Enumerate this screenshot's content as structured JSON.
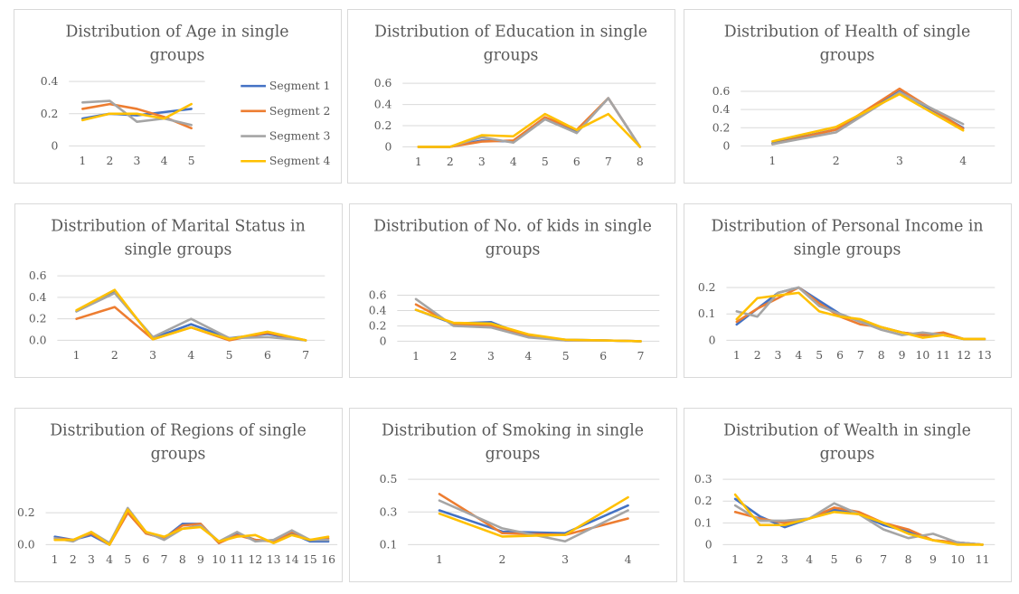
{
  "colors": {
    "Segment 1": "#4472c4",
    "Segment 2": "#ed7d31",
    "Segment 3": "#a5a5a5",
    "Segment 4": "#ffc000"
  },
  "legend": [
    "Segment 1",
    "Segment 2",
    "Segment 3",
    "Segment 4"
  ],
  "chart_data": [
    {
      "type": "line",
      "title": [
        "Distribution of Age in single",
        "groups"
      ],
      "xlabel": "",
      "ylabel": "",
      "x": [
        "1",
        "2",
        "3",
        "4",
        "5"
      ],
      "yticks": [
        "0.4",
        "0.2",
        "0"
      ],
      "ylim": [
        0,
        0.4
      ],
      "legend": "right",
      "series": [
        {
          "name": "Segment 1",
          "values": [
            0.17,
            0.2,
            0.19,
            0.21,
            0.23
          ]
        },
        {
          "name": "Segment 2",
          "values": [
            0.23,
            0.26,
            0.23,
            0.18,
            0.11
          ]
        },
        {
          "name": "Segment 3",
          "values": [
            0.27,
            0.28,
            0.15,
            0.17,
            0.13
          ]
        },
        {
          "name": "Segment 4",
          "values": [
            0.16,
            0.2,
            0.2,
            0.17,
            0.26
          ]
        }
      ]
    },
    {
      "type": "line",
      "title": [
        "Distribution of Education in single",
        "groups"
      ],
      "xlabel": "",
      "ylabel": "",
      "x": [
        "1",
        "2",
        "3",
        "4",
        "5",
        "6",
        "7",
        "8"
      ],
      "yticks": [
        "0.6",
        "0.4",
        "0.2",
        "0"
      ],
      "ylim": [
        0,
        0.6
      ],
      "series": [
        {
          "name": "Segment 1",
          "values": [
            0,
            0,
            0.06,
            0.05,
            0.27,
            0.14,
            0.46,
            0
          ]
        },
        {
          "name": "Segment 2",
          "values": [
            0,
            0,
            0.05,
            0.06,
            0.28,
            0.16,
            0.46,
            0
          ]
        },
        {
          "name": "Segment 3",
          "values": [
            0,
            0,
            0.09,
            0.04,
            0.26,
            0.13,
            0.46,
            0
          ]
        },
        {
          "name": "Segment 4",
          "values": [
            0,
            0,
            0.11,
            0.1,
            0.31,
            0.16,
            0.31,
            0
          ]
        }
      ]
    },
    {
      "type": "line",
      "title": [
        "Distribution of Health of single",
        "groups"
      ],
      "xlabel": "",
      "ylabel": "",
      "x": [
        "1",
        "2",
        "3",
        "4"
      ],
      "yticks": [
        "0.6",
        "0.4",
        "0.2",
        "0"
      ],
      "ylim": [
        0,
        0.6
      ],
      "series": [
        {
          "name": "Segment 1",
          "values": [
            0.03,
            0.18,
            0.6,
            0.2
          ]
        },
        {
          "name": "Segment 2",
          "values": [
            0.02,
            0.18,
            0.63,
            0.19
          ]
        },
        {
          "name": "Segment 3",
          "values": [
            0.02,
            0.15,
            0.59,
            0.24
          ]
        },
        {
          "name": "Segment 4",
          "values": [
            0.05,
            0.21,
            0.57,
            0.17
          ]
        }
      ]
    },
    {
      "type": "line",
      "title": [
        "Distribution of Marital Status in",
        "single groups"
      ],
      "xlabel": "",
      "ylabel": "",
      "x": [
        "1",
        "2",
        "3",
        "4",
        "5",
        "6",
        "7"
      ],
      "yticks": [
        "0.6",
        "0.4",
        "0.2",
        "0.0"
      ],
      "ylim": [
        0,
        0.6
      ],
      "series": [
        {
          "name": "Segment 1",
          "values": [
            0.27,
            0.45,
            0.02,
            0.15,
            0.02,
            0.06,
            0
          ]
        },
        {
          "name": "Segment 2",
          "values": [
            0.2,
            0.31,
            0.01,
            0.12,
            0,
            0.07,
            0
          ]
        },
        {
          "name": "Segment 3",
          "values": [
            0.27,
            0.44,
            0.03,
            0.2,
            0.02,
            0.03,
            0
          ]
        },
        {
          "name": "Segment 4",
          "values": [
            0.28,
            0.47,
            0.01,
            0.12,
            0.01,
            0.08,
            0
          ]
        }
      ]
    },
    {
      "type": "line",
      "title": [
        "Distribution of No. of kids in single",
        "groups"
      ],
      "xlabel": "",
      "ylabel": "",
      "x": [
        "1",
        "2",
        "3",
        "4",
        "5",
        "6",
        "7"
      ],
      "yticks": [
        "0.6",
        "0.4",
        "0.2",
        "0"
      ],
      "ylim": [
        0,
        0.7
      ],
      "series": [
        {
          "name": "Segment 1",
          "values": [
            0.41,
            0.23,
            0.25,
            0.06,
            0.02,
            0.01,
            0
          ]
        },
        {
          "name": "Segment 2",
          "values": [
            0.48,
            0.22,
            0.21,
            0.07,
            0.01,
            0.01,
            0
          ]
        },
        {
          "name": "Segment 3",
          "values": [
            0.55,
            0.2,
            0.18,
            0.05,
            0.01,
            0.01,
            0
          ]
        },
        {
          "name": "Segment 4",
          "values": [
            0.41,
            0.24,
            0.23,
            0.09,
            0.02,
            0.01,
            0
          ]
        }
      ]
    },
    {
      "type": "line",
      "title": [
        "Distribution of Personal Income in",
        "single groups"
      ],
      "xlabel": "",
      "ylabel": "",
      "x": [
        "1",
        "2",
        "3",
        "4",
        "5",
        "6",
        "7",
        "8",
        "9",
        "10",
        "11",
        "12",
        "13"
      ],
      "yticks": [
        "0.2",
        "0.1",
        "0"
      ],
      "ylim": [
        0,
        0.2
      ],
      "series": [
        {
          "name": "Segment 1",
          "values": [
            0.06,
            0.12,
            0.18,
            0.2,
            0.15,
            0.1,
            0.07,
            0.05,
            0.03,
            0.02,
            0.02,
            0.005,
            0.005
          ]
        },
        {
          "name": "Segment 2",
          "values": [
            0.07,
            0.12,
            0.16,
            0.2,
            0.14,
            0.09,
            0.06,
            0.05,
            0.03,
            0.02,
            0.03,
            0.005,
            0.005
          ]
        },
        {
          "name": "Segment 3",
          "values": [
            0.11,
            0.09,
            0.18,
            0.2,
            0.13,
            0.1,
            0.07,
            0.04,
            0.02,
            0.03,
            0.02,
            0.005,
            0.005
          ]
        },
        {
          "name": "Segment 4",
          "values": [
            0.08,
            0.16,
            0.17,
            0.18,
            0.11,
            0.09,
            0.08,
            0.05,
            0.03,
            0.01,
            0.02,
            0.005,
            0.005
          ]
        }
      ]
    },
    {
      "type": "line",
      "title": [
        "Distribution of Regions of single",
        "groups"
      ],
      "xlabel": "",
      "ylabel": "",
      "x": [
        "1",
        "2",
        "3",
        "4",
        "5",
        "6",
        "7",
        "8",
        "9",
        "10",
        "11",
        "12",
        "13",
        "14",
        "15",
        "16"
      ],
      "yticks": [
        "0.2",
        "0.0"
      ],
      "ylim": [
        0,
        0.32
      ],
      "series": [
        {
          "name": "Segment 1",
          "values": [
            0.05,
            0.03,
            0.06,
            0,
            0.21,
            0.07,
            0.04,
            0.13,
            0.13,
            0.01,
            0.07,
            0.03,
            0.02,
            0.07,
            0.02,
            0.02
          ]
        },
        {
          "name": "Segment 2",
          "values": [
            0.04,
            0.03,
            0.07,
            0,
            0.2,
            0.07,
            0.04,
            0.12,
            0.13,
            0.01,
            0.06,
            0.03,
            0.02,
            0.08,
            0.03,
            0.04
          ]
        },
        {
          "name": "Segment 3",
          "values": [
            0.04,
            0.02,
            0.08,
            0.01,
            0.23,
            0.08,
            0.03,
            0.1,
            0.12,
            0.02,
            0.08,
            0.02,
            0.03,
            0.09,
            0.03,
            0.03
          ]
        },
        {
          "name": "Segment 4",
          "values": [
            0.03,
            0.03,
            0.08,
            0,
            0.22,
            0.08,
            0.05,
            0.1,
            0.11,
            0.02,
            0.05,
            0.06,
            0.01,
            0.06,
            0.03,
            0.05
          ]
        }
      ]
    },
    {
      "type": "line",
      "title": [
        "Distribution of Smoking in single",
        "groups"
      ],
      "xlabel": "",
      "ylabel": "",
      "x": [
        "1",
        "2",
        "3",
        "4"
      ],
      "yticks": [
        "0.5",
        "0.3",
        "0.1"
      ],
      "ylim": [
        0.1,
        0.5
      ],
      "series": [
        {
          "name": "Segment 1",
          "values": [
            0.31,
            0.18,
            0.17,
            0.34
          ]
        },
        {
          "name": "Segment 2",
          "values": [
            0.41,
            0.17,
            0.16,
            0.26
          ]
        },
        {
          "name": "Segment 3",
          "values": [
            0.37,
            0.2,
            0.12,
            0.31
          ]
        },
        {
          "name": "Segment 4",
          "values": [
            0.29,
            0.15,
            0.16,
            0.39
          ]
        }
      ]
    },
    {
      "type": "line",
      "title": [
        "Distribution of Wealth in single",
        "groups"
      ],
      "xlabel": "",
      "ylabel": "",
      "x": [
        "1",
        "2",
        "3",
        "4",
        "5",
        "6",
        "7",
        "8",
        "9",
        "10",
        "11"
      ],
      "yticks": [
        "0.3",
        "0.2",
        "0.1",
        "0"
      ],
      "ylim": [
        0,
        0.3
      ],
      "series": [
        {
          "name": "Segment 1",
          "values": [
            0.21,
            0.13,
            0.08,
            0.12,
            0.16,
            0.14,
            0.09,
            0.06,
            0.02,
            0.01,
            0
          ]
        },
        {
          "name": "Segment 2",
          "values": [
            0.15,
            0.12,
            0.1,
            0.12,
            0.17,
            0.15,
            0.1,
            0.07,
            0.02,
            0.01,
            0
          ]
        },
        {
          "name": "Segment 3",
          "values": [
            0.18,
            0.11,
            0.11,
            0.12,
            0.19,
            0.14,
            0.07,
            0.03,
            0.05,
            0.01,
            0
          ]
        },
        {
          "name": "Segment 4",
          "values": [
            0.23,
            0.09,
            0.09,
            0.12,
            0.15,
            0.14,
            0.1,
            0.05,
            0.02,
            0,
            0
          ]
        }
      ]
    }
  ]
}
